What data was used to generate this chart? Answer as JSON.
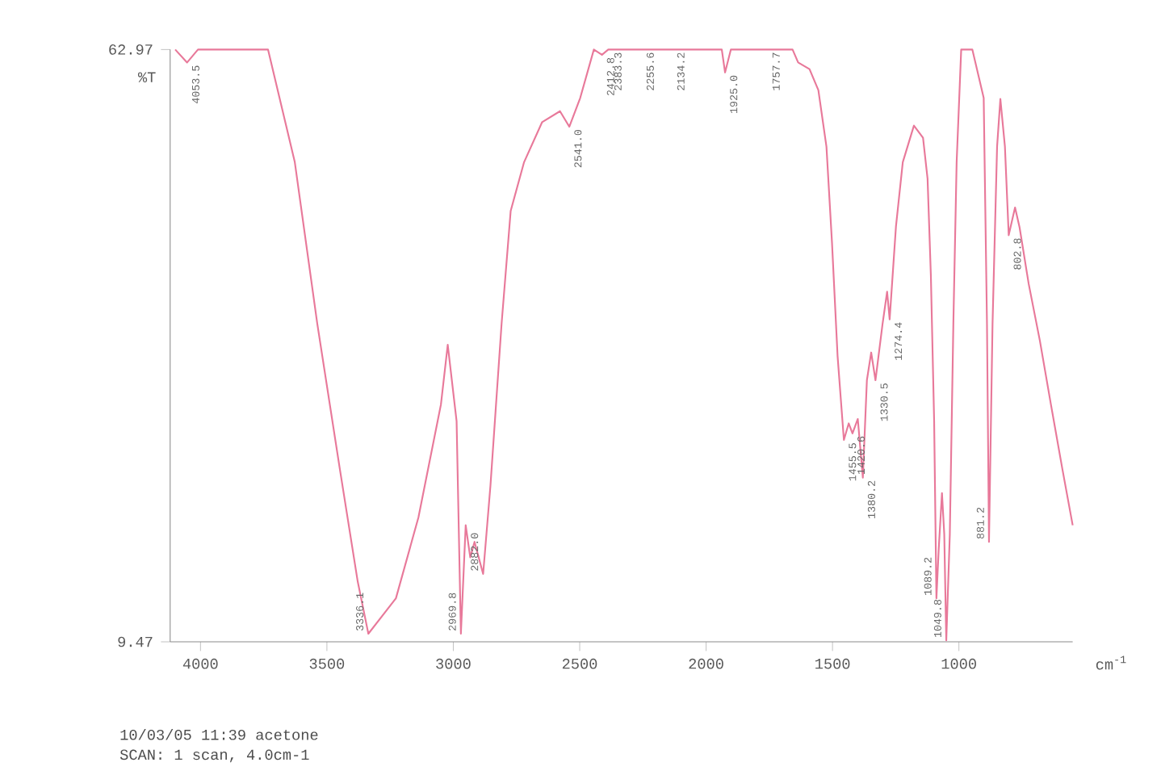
{
  "chart_data": {
    "type": "line",
    "xlabel": "cm$^{-1}$",
    "ylabel": "%T",
    "x": [
      4100,
      4053,
      4010,
      3733,
      3627,
      3538,
      3449,
      3378,
      3336,
      3227,
      3138,
      3049,
      3022,
      2987,
      2970,
      2951,
      2933,
      2916,
      2882,
      2853,
      2809,
      2773,
      2720,
      2649,
      2578,
      2541,
      2498,
      2444,
      2412,
      2387,
      1938,
      1925,
      1902,
      1658,
      1636,
      1591,
      1556,
      1524,
      1502,
      1480,
      1455,
      1436,
      1421,
      1400,
      1380,
      1364,
      1347,
      1330,
      1302,
      1284,
      1274,
      1249,
      1222,
      1178,
      1142,
      1124,
      1111,
      1098,
      1089,
      1080,
      1067,
      1058,
      1050,
      1036,
      1022,
      1009,
      991,
      947,
      902,
      889,
      881,
      867,
      849,
      836,
      818,
      803,
      778,
      760,
      724,
      680,
      636,
      591,
      550
    ],
    "series": [
      {
        "color": "#e8799a",
        "values": [
          62.97,
          61.8,
          62.97,
          62.97,
          52.8,
          38.2,
          25.1,
          14.9,
          10.2,
          13.4,
          20.7,
          30.9,
          36.3,
          29.4,
          10.2,
          20.0,
          17.1,
          18.5,
          15.6,
          23.6,
          38.2,
          48.4,
          52.8,
          56.4,
          57.4,
          56.0,
          58.6,
          62.97,
          62.5,
          62.97,
          62.97,
          60.9,
          62.97,
          62.97,
          61.8,
          61.2,
          59.3,
          54.2,
          45.5,
          35.3,
          27.7,
          29.2,
          28.3,
          29.6,
          24.3,
          33.1,
          35.6,
          33.1,
          38.2,
          41.1,
          38.6,
          47.0,
          52.8,
          56.1,
          55.0,
          51.3,
          42.6,
          29.4,
          13.4,
          17.8,
          22.9,
          19.2,
          9.6,
          19.2,
          38.2,
          52.8,
          62.97,
          62.97,
          58.6,
          38.2,
          18.5,
          38.2,
          54.2,
          58.5,
          54.2,
          46.2,
          48.7,
          46.9,
          41.8,
          36.7,
          30.9,
          25.1,
          20.0
        ]
      }
    ],
    "xlim": [
      4120,
      550
    ],
    "ylim": [
      9.47,
      62.97
    ],
    "xticks": [
      4000,
      3500,
      3000,
      2500,
      2000,
      1500,
      1000
    ],
    "yticks": [
      9.47,
      62.97
    ],
    "annotations": [
      {
        "text": "4053.5",
        "x": 4053,
        "y": 61.8
      },
      {
        "text": "3336.1",
        "x": 3336,
        "y": 10.2
      },
      {
        "text": "2969.8",
        "x": 2970,
        "y": 10.2
      },
      {
        "text": "2882.0",
        "x": 2882,
        "y": 15.6
      },
      {
        "text": "2541.0",
        "x": 2541,
        "y": 56.0
      },
      {
        "text": "2412.8",
        "x": 2412,
        "y": 62.5
      },
      {
        "text": "2383.3",
        "x": 2383,
        "y": 62.97
      },
      {
        "text": "2255.6",
        "x": 2255,
        "y": 62.97
      },
      {
        "text": "2134.2",
        "x": 2134,
        "y": 62.97
      },
      {
        "text": "1925.0",
        "x": 1925,
        "y": 60.9
      },
      {
        "text": "1757.7",
        "x": 1757,
        "y": 62.97
      },
      {
        "text": "1455.5",
        "x": 1455,
        "y": 27.7
      },
      {
        "text": "1420.6",
        "x": 1421,
        "y": 28.3
      },
      {
        "text": "1380.2",
        "x": 1380,
        "y": 24.3
      },
      {
        "text": "1330.5",
        "x": 1330,
        "y": 33.1
      },
      {
        "text": "1274.4",
        "x": 1274,
        "y": 38.6
      },
      {
        "text": "1089.2",
        "x": 1089,
        "y": 13.4
      },
      {
        "text": "1049.8",
        "x": 1050,
        "y": 9.6
      },
      {
        "text": "881.2",
        "x": 881,
        "y": 18.5
      },
      {
        "text": "802.8",
        "x": 803,
        "y": 46.2
      },
      "10/03/05 11:39 acetone",
      "SCAN: 1 scan, 4.0cm-1"
    ]
  }
}
